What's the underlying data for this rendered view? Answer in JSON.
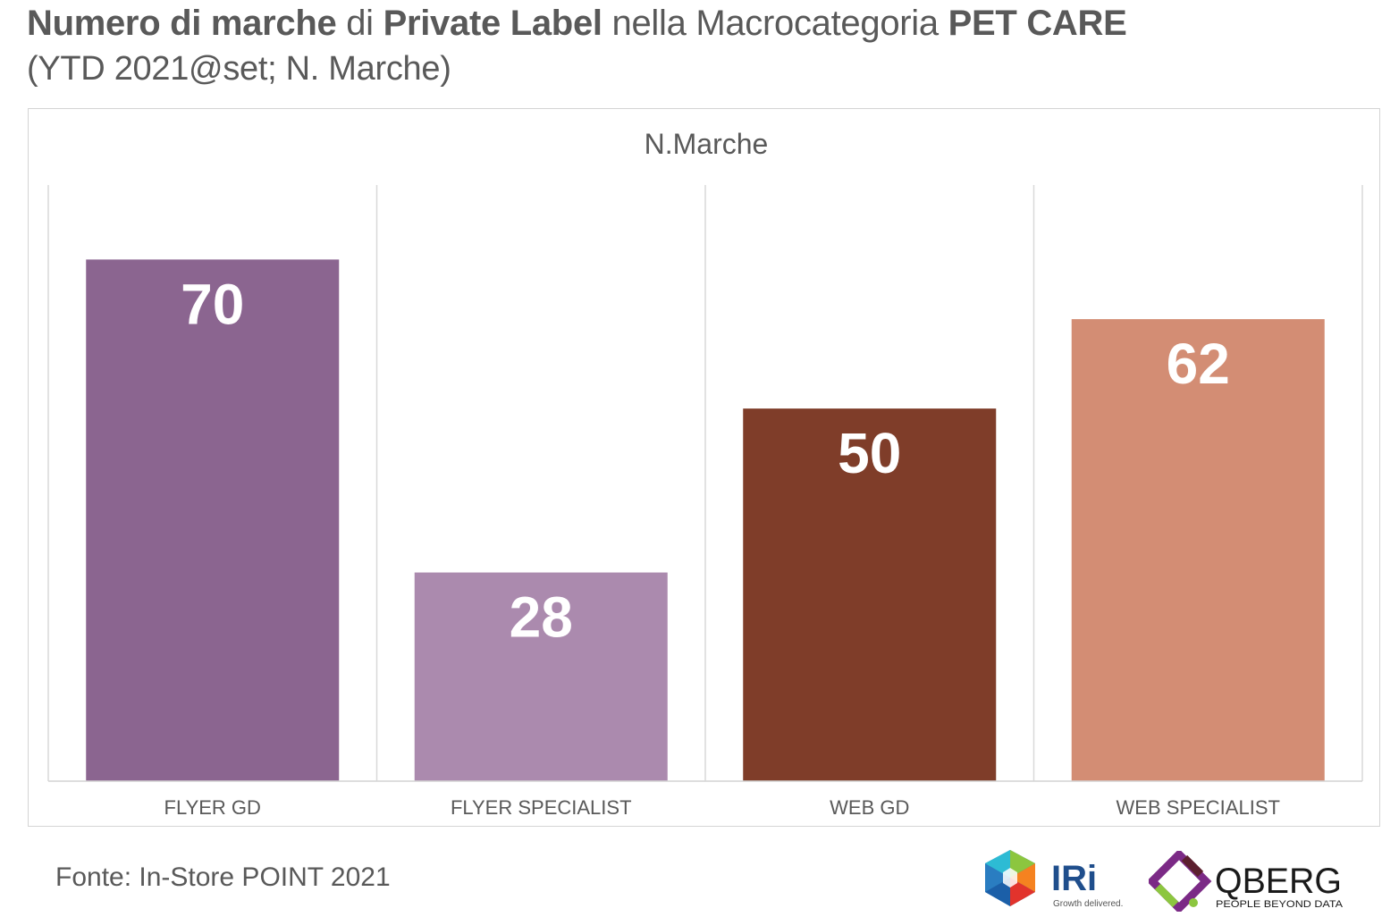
{
  "header": {
    "title_parts": [
      {
        "text": "Numero di marche",
        "bold": true
      },
      {
        "text": " di ",
        "bold": false
      },
      {
        "text": "Private Label",
        "bold": true
      },
      {
        "text": " nella Macrocategoria ",
        "bold": false
      },
      {
        "text": "PET CARE",
        "bold": true
      }
    ],
    "subtitle": "(YTD 2021@set; N. Marche)"
  },
  "chart_data": {
    "type": "bar",
    "title": "N.Marche",
    "categories": [
      "FLYER GD",
      "FLYER SPECIALIST",
      "WEB GD",
      "WEB SPECIALIST"
    ],
    "values": [
      70,
      28,
      50,
      62
    ],
    "colors": [
      "#8b6590",
      "#ab8aae",
      "#7f3d29",
      "#d38d74"
    ],
    "ylim": [
      0,
      80
    ],
    "xlabel": "",
    "ylabel": "",
    "grid": false,
    "legend": "none"
  },
  "footer": {
    "source": "Fonte: In-Store POINT 2021"
  },
  "logos": {
    "iri": {
      "name": "IRi",
      "tagline": "Growth delivered.",
      "color": "#1f4e8c"
    },
    "qberg": {
      "name": "QBERG",
      "tagline": "PEOPLE BEYOND DATA",
      "color": "#1a1a1a"
    }
  }
}
